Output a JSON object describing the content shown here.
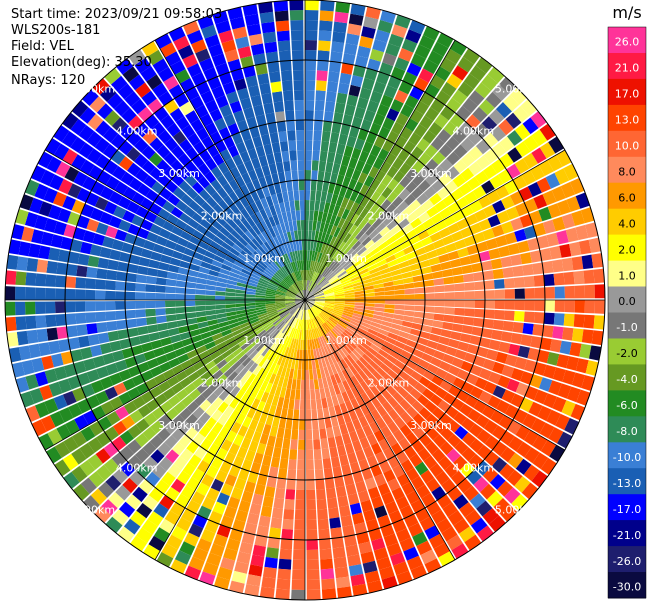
{
  "header": {
    "start_time": "Start time: 2023/09/21 09:58:03",
    "instrument": "WLS200s-181",
    "field": "Field: VEL",
    "elevation": "Elevation(deg): 35.30",
    "nrays": "NRays: 120"
  },
  "chart_data": {
    "type": "heatmap",
    "subtype": "radar-ppi",
    "field": "VEL",
    "units": "m/s",
    "elevation_deg": 35.3,
    "n_rays": 120,
    "max_range_km": 5.0,
    "range_ring_labels": [
      "1.00km",
      "2.00km",
      "3.00km",
      "4.00km",
      "5.00km"
    ],
    "range_ring_km": [
      1,
      2,
      3,
      4,
      5
    ],
    "colorbar": {
      "ticks": [
        "26.0",
        "21.0",
        "17.0",
        "13.0",
        "10.0",
        "8.0",
        "6.0",
        "4.0",
        "2.0",
        "1.0",
        "0.0",
        "-1.0",
        "-2.0",
        "-4.0",
        "-6.0",
        "-8.0",
        "-10.0",
        "-13.0",
        "-17.0",
        "-21.0",
        "-26.0",
        "-30.0"
      ],
      "colors": [
        "#ff3399",
        "#ff1a44",
        "#ee1100",
        "#ff4400",
        "#ff6633",
        "#ff8a5c",
        "#ff9900",
        "#ffcc00",
        "#ffff00",
        "#ffff88",
        "#999999",
        "#777777",
        "#99cc33",
        "#669922",
        "#228b22",
        "#2e8b57",
        "#3a7fd5",
        "#1a5fb4",
        "#0000ff",
        "#00008b",
        "#1e1e6e",
        "#0a0a40"
      ]
    },
    "pattern": {
      "negative_peak_azimuth_deg": 315,
      "positive_peak_azimuth_deg": 135,
      "inner_peak_speed_ms": 10.0,
      "outer_shear_ms_per_km": 1.8
    }
  }
}
